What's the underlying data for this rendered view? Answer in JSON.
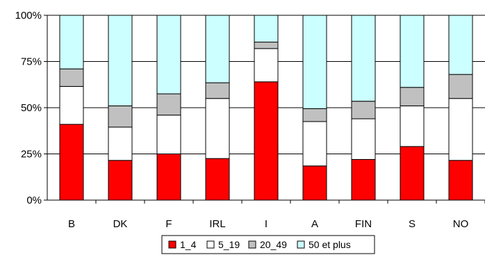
{
  "chart_data": {
    "type": "bar",
    "stacked": true,
    "normalized": true,
    "categories": [
      "B",
      "DK",
      "F",
      "IRL",
      "I",
      "A",
      "FIN",
      "S",
      "NO"
    ],
    "series": [
      {
        "name": "1_4",
        "color": "#ff0000",
        "values": [
          41,
          21.5,
          25,
          22.5,
          64,
          18.5,
          22,
          29,
          21.5
        ]
      },
      {
        "name": "5_19",
        "color": "#ffffff",
        "values": [
          20.5,
          18,
          21,
          32.5,
          18,
          24,
          22,
          22,
          33.5
        ]
      },
      {
        "name": "20_49",
        "color": "#c0c0c0",
        "values": [
          9.5,
          11.5,
          11.5,
          8.5,
          3.5,
          7,
          9.5,
          10,
          13
        ]
      },
      {
        "name": "50 et plus",
        "color": "#ccffff",
        "values": [
          29,
          49,
          42.5,
          36.5,
          14.5,
          50.5,
          46.5,
          39,
          32
        ]
      }
    ],
    "y_ticks": [
      "0%",
      "25%",
      "50%",
      "75%",
      "100%"
    ],
    "ylim": [
      0,
      100
    ],
    "grid": true,
    "legend_position": "bottom",
    "title": "",
    "xlabel": "",
    "ylabel": ""
  }
}
